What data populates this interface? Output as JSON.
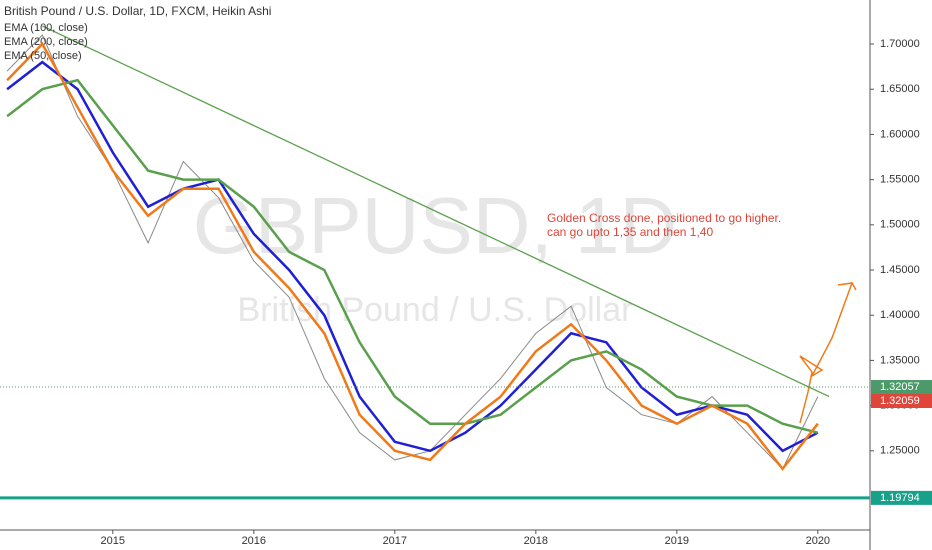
{
  "chart_data": {
    "type": "line",
    "title": "British Pound / U.S. Dollar, 1D, FXCM, Heikin Ashi",
    "watermark": "GBPUSD, 1D",
    "watermark_sub": "British Pound / U.S. Dollar",
    "annotation": [
      "Golden Cross done, positioned to go higher.",
      "can go upto 1,35 and then 1,40"
    ],
    "x": [
      2014.25,
      2014.5,
      2014.75,
      2015,
      2015.25,
      2015.5,
      2015.75,
      2016,
      2016.25,
      2016.5,
      2016.75,
      2017,
      2017.25,
      2017.5,
      2017.75,
      2018,
      2018.25,
      2018.5,
      2018.75,
      2019,
      2019.25,
      2019.5,
      2019.75,
      2020
    ],
    "price": {
      "color": "#8a8a8a",
      "values": [
        1.67,
        1.71,
        1.62,
        1.56,
        1.48,
        1.57,
        1.53,
        1.46,
        1.42,
        1.33,
        1.27,
        1.24,
        1.25,
        1.29,
        1.33,
        1.38,
        1.41,
        1.32,
        1.29,
        1.28,
        1.31,
        1.27,
        1.23,
        1.31
      ]
    },
    "series": [
      {
        "name": "EMA (100, close)",
        "color": "#1f1fd6",
        "values": [
          1.65,
          1.68,
          1.65,
          1.58,
          1.52,
          1.54,
          1.55,
          1.49,
          1.45,
          1.4,
          1.31,
          1.26,
          1.25,
          1.27,
          1.3,
          1.34,
          1.38,
          1.37,
          1.32,
          1.29,
          1.3,
          1.29,
          1.25,
          1.27
        ]
      },
      {
        "name": "EMA (200, close)",
        "color": "#5aa04c",
        "values": [
          1.62,
          1.65,
          1.66,
          1.61,
          1.56,
          1.55,
          1.55,
          1.52,
          1.47,
          1.45,
          1.37,
          1.31,
          1.28,
          1.28,
          1.29,
          1.32,
          1.35,
          1.36,
          1.34,
          1.31,
          1.3,
          1.3,
          1.28,
          1.27
        ]
      },
      {
        "name": "EMA (50, close)",
        "color": "#f07a1a",
        "values": [
          1.66,
          1.7,
          1.63,
          1.56,
          1.51,
          1.54,
          1.54,
          1.47,
          1.43,
          1.38,
          1.29,
          1.25,
          1.24,
          1.28,
          1.31,
          1.36,
          1.39,
          1.35,
          1.3,
          1.28,
          1.3,
          1.28,
          1.23,
          1.28
        ]
      }
    ],
    "trendline": {
      "color": "#5aa04c",
      "x": [
        2014.5,
        2020.08
      ],
      "y": [
        1.72,
        1.31
      ]
    },
    "price_labels": [
      {
        "value": 1.32057,
        "color": "#4c9a6a"
      },
      {
        "value": 1.32059,
        "color": "#e0453a"
      },
      {
        "value": 1.19794,
        "color": "#17a08a"
      }
    ],
    "xlim": [
      2014.2,
      2020.37
    ],
    "xticks": [
      2015,
      2016,
      2017,
      2018,
      2019,
      2020
    ],
    "ylim": [
      1.1624,
      1.7487
    ],
    "yticks": [
      {
        "value": 1.25,
        "label": "1.25000"
      },
      {
        "value": 1.3,
        "label": "1.30000"
      },
      {
        "value": 1.35,
        "label": "1.35000"
      },
      {
        "value": 1.4,
        "label": "1.40000"
      },
      {
        "value": 1.45,
        "label": "1.45000"
      },
      {
        "value": 1.5,
        "label": "1.50000"
      },
      {
        "value": 1.55,
        "label": "1.55000"
      },
      {
        "value": 1.6,
        "label": "1.60000"
      },
      {
        "value": 1.65,
        "label": "1.65000"
      },
      {
        "value": 1.7,
        "label": "1.70000"
      }
    ]
  }
}
